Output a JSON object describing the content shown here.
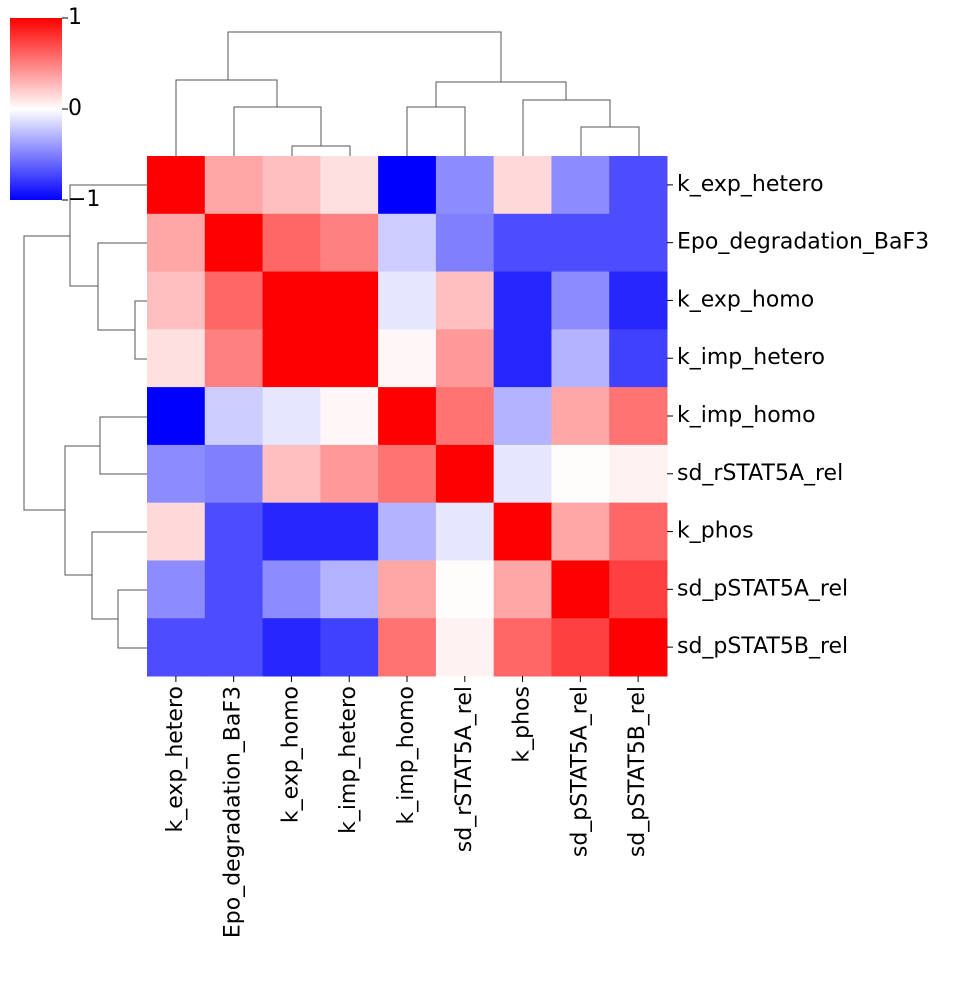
{
  "chart_data": {
    "type": "heatmap",
    "rows": [
      "k_exp_hetero",
      "Epo_degradation_BaF3",
      "k_exp_homo",
      "k_imp_hetero",
      "k_imp_homo",
      "sd_rSTAT5A_rel",
      "k_phos",
      "sd_pSTAT5A_rel",
      "sd_pSTAT5B_rel"
    ],
    "columns": [
      "k_exp_hetero",
      "Epo_degradation_BaF3",
      "k_exp_homo",
      "k_imp_hetero",
      "k_imp_homo",
      "sd_rSTAT5A_rel",
      "k_phos",
      "sd_pSTAT5A_rel",
      "sd_pSTAT5B_rel"
    ],
    "values": [
      [
        1,
        0.35,
        0.25,
        0.12,
        -1,
        -0.45,
        0.15,
        -0.45,
        -0.7
      ],
      [
        0.35,
        1,
        0.6,
        0.5,
        -0.2,
        -0.5,
        -0.7,
        -0.7,
        -0.7
      ],
      [
        0.25,
        0.6,
        1,
        1,
        -0.1,
        0.25,
        -0.85,
        -0.45,
        -0.85
      ],
      [
        0.12,
        0.5,
        1,
        1,
        0.03,
        0.4,
        -0.85,
        -0.3,
        -0.75
      ],
      [
        -1,
        -0.2,
        -0.1,
        0.03,
        1,
        0.55,
        -0.3,
        0.35,
        0.55
      ],
      [
        -0.45,
        -0.5,
        0.25,
        0.4,
        0.55,
        1,
        -0.1,
        0.01,
        0.05
      ],
      [
        0.15,
        -0.7,
        -0.85,
        -0.85,
        -0.3,
        -0.1,
        1,
        0.35,
        0.6
      ],
      [
        -0.45,
        -0.7,
        -0.45,
        -0.3,
        0.35,
        0.01,
        0.35,
        1,
        0.75
      ],
      [
        -0.7,
        -0.7,
        -0.85,
        -0.75,
        0.55,
        0.05,
        0.6,
        0.75,
        1
      ]
    ],
    "colorbar": {
      "lim": [
        -1,
        1
      ],
      "ticks": [
        {
          "value": -1,
          "label": "−1"
        },
        0,
        1
      ],
      "colors": [
        "#0000ff",
        "#ffffff",
        "#ff0000"
      ]
    }
  }
}
